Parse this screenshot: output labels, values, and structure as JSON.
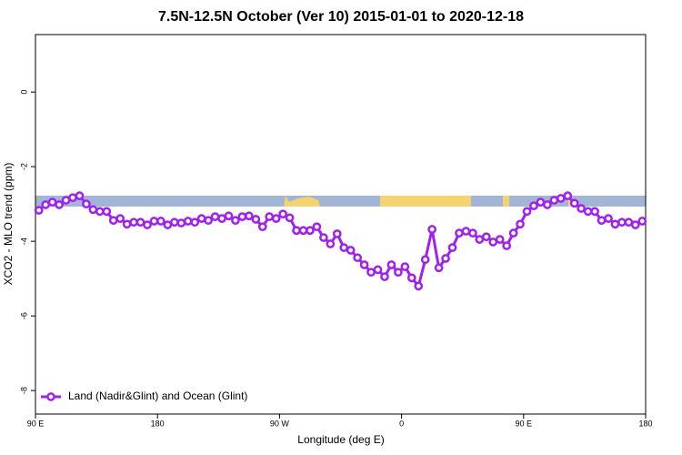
{
  "chart_data": {
    "type": "line",
    "title": "7.5N-12.5N October (Ver 10)   2015-01-01 to 2020-12-18",
    "x_label": "Longitude (deg E)",
    "y_label": "XCO2 - MLO trend (ppm)",
    "xlim": [
      90,
      540
    ],
    "ylim": [
      -8.63,
      1.54
    ],
    "xticks": [
      {
        "value": 90,
        "label": "90 E"
      },
      {
        "value": 180,
        "label": "180"
      },
      {
        "value": 270,
        "label": "90 W"
      },
      {
        "value": 360,
        "label": "0"
      },
      {
        "value": 450,
        "label": "90 E"
      },
      {
        "value": 540,
        "label": "180"
      }
    ],
    "yticks": [
      0,
      -2,
      -4,
      -6,
      -8
    ],
    "legend": "bottomleft",
    "series": [
      {
        "name": "Land (Nadir&Glint) and Ocean (Glint)",
        "color": "#a020f0",
        "x": [
          92.5,
          97.5,
          102.5,
          107.5,
          112.5,
          117.5,
          122.5,
          127.5,
          132.5,
          137.5,
          142.5,
          147.5,
          152.5,
          157.5,
          162.5,
          167.5,
          172.5,
          177.5,
          182.5,
          187.5,
          192.5,
          197.5,
          202.5,
          207.5,
          212.5,
          217.5,
          222.5,
          227.5,
          232.5,
          237.5,
          242.5,
          247.5,
          252.5,
          257.5,
          262.5,
          267.5,
          272.5,
          277.5,
          282.5,
          287.5,
          292.5,
          297.5,
          302.5,
          307.5,
          312.5,
          317.5,
          322.5,
          327.5,
          332.5,
          337.5,
          342.5,
          347.5,
          352.5,
          357.5,
          362.5,
          367.5,
          372.5,
          377.5,
          382.5,
          387.5,
          392.5,
          397.5,
          402.5,
          407.5,
          412.5,
          417.5,
          422.5,
          427.5,
          432.5,
          437.5,
          442.5,
          447.5,
          452.5,
          457.5,
          462.5,
          467.5,
          472.5,
          477.5,
          482.5,
          487.5,
          492.5,
          497.5,
          502.5,
          507.5,
          512.5,
          517.5,
          522.5,
          527.5,
          532.5,
          537.5
        ],
        "values": [
          -3.17,
          -3.02,
          -2.95,
          -3.02,
          -2.9,
          -2.83,
          -2.78,
          -3.0,
          -3.15,
          -3.2,
          -3.2,
          -3.44,
          -3.39,
          -3.54,
          -3.49,
          -3.49,
          -3.56,
          -3.46,
          -3.46,
          -3.56,
          -3.49,
          -3.51,
          -3.46,
          -3.49,
          -3.39,
          -3.44,
          -3.34,
          -3.39,
          -3.32,
          -3.44,
          -3.34,
          -3.32,
          -3.41,
          -3.61,
          -3.34,
          -3.39,
          -3.27,
          -3.37,
          -3.71,
          -3.71,
          -3.71,
          -3.61,
          -3.9,
          -4.07,
          -3.8,
          -4.17,
          -4.24,
          -4.44,
          -4.63,
          -4.83,
          -4.76,
          -4.95,
          -4.63,
          -4.83,
          -4.68,
          -4.98,
          -5.2,
          -4.49,
          -3.68,
          -4.71,
          -4.46,
          -4.17,
          -3.78,
          -3.73,
          -3.78,
          -3.95,
          -3.88,
          -4.02,
          -3.95,
          -4.12,
          -3.78,
          -3.54,
          -3.2,
          -3.05,
          -2.95,
          -3.02,
          -2.9,
          -2.85,
          -2.78,
          -2.98,
          -3.12,
          -3.2,
          -3.2,
          -3.44,
          -3.39,
          -3.54,
          -3.49,
          -3.49,
          -3.56,
          -3.46
        ]
      }
    ]
  }
}
